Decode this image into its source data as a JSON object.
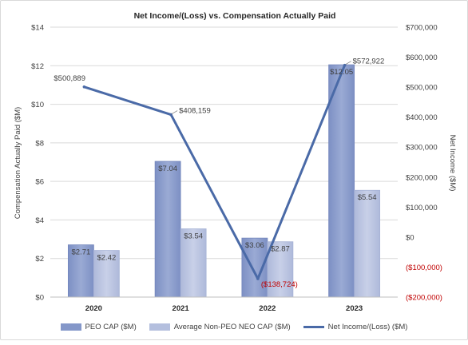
{
  "chart_data": {
    "type": "bar+line",
    "title": "Net Income/(Loss) vs. Compensation Actually Paid",
    "categories": [
      "2020",
      "2021",
      "2022",
      "2023"
    ],
    "ylabel": "Compensation Actually Paid ($M)",
    "y2label": "Net Income ($M)",
    "ylim": [
      0,
      14
    ],
    "y2lim": [
      -200000,
      700000
    ],
    "yticks": [
      "$0",
      "$2",
      "$4",
      "$6",
      "$8",
      "$10",
      "$12",
      "$14"
    ],
    "y2ticks": [
      "($200,000)",
      "($100,000)",
      "$0",
      "$100,000",
      "$200,000",
      "$300,000",
      "$400,000",
      "$500,000",
      "$600,000",
      "$700,000"
    ],
    "series": [
      {
        "name": "PEO CAP ($M)",
        "type": "bar",
        "color": "#8497c9",
        "values": [
          2.71,
          7.04,
          3.06,
          12.05
        ],
        "labels": [
          "$2.71",
          "$7.04",
          "$3.06",
          "$12.05"
        ]
      },
      {
        "name": "Average Non-PEO NEO CAP ($M)",
        "type": "bar",
        "color": "#b4bfde",
        "values": [
          2.42,
          3.54,
          2.87,
          5.54
        ],
        "labels": [
          "$2.42",
          "$3.54",
          "$2.87",
          "$5.54"
        ]
      },
      {
        "name": "Net Income/(Loss) ($M)",
        "type": "line",
        "axis": "right",
        "color": "#4a6aa7",
        "values": [
          500889,
          408159,
          -138724,
          572922
        ],
        "labels": [
          "$500,889",
          "$408,159",
          "($138,724)",
          "$572,922"
        ]
      }
    ],
    "negative_color": "#c00000",
    "grid": true,
    "legend_position": "bottom"
  }
}
